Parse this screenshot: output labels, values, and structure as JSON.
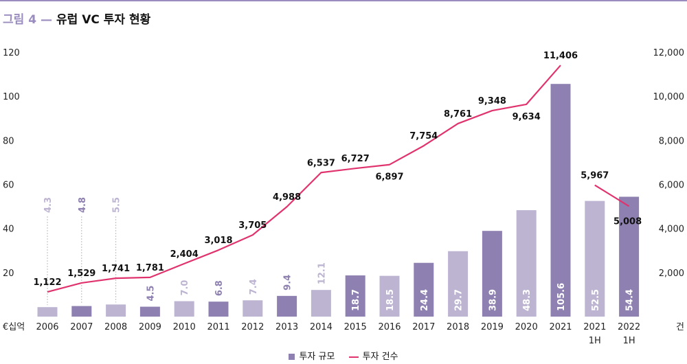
{
  "title": {
    "figure_label": "그림 4",
    "text": "유럽 VC 투자 현황"
  },
  "chart_data": {
    "type": "bar",
    "categories": [
      "2006",
      "2007",
      "2008",
      "2009",
      "2010",
      "2011",
      "2012",
      "2013",
      "2014",
      "2015",
      "2016",
      "2017",
      "2018",
      "2019",
      "2020",
      "2021",
      "2021 1H",
      "2022 1H"
    ],
    "left_axis": {
      "unit": "€십억",
      "ticks": [
        "20",
        "40",
        "60",
        "80",
        "100",
        "120"
      ],
      "ylim": [
        0,
        120
      ]
    },
    "right_axis": {
      "unit": "건",
      "ticks": [
        "2,000",
        "4,000",
        "6,000",
        "8,000",
        "10,000",
        "12,000"
      ],
      "ylim": [
        0,
        12000
      ]
    },
    "series": [
      {
        "name": "투자 규모",
        "type": "bar",
        "axis": "left",
        "values": [
          4.3,
          4.8,
          5.5,
          4.5,
          7.0,
          6.8,
          7.4,
          9.4,
          12.1,
          18.7,
          18.5,
          24.4,
          29.7,
          38.9,
          48.3,
          105.6,
          52.5,
          54.4
        ],
        "labels": [
          "4.3",
          "4.8",
          "5.5",
          "4.5",
          "7.0",
          "6.8",
          "7.4",
          "9.4",
          "12.1",
          "18.7",
          "18.5",
          "24.4",
          "29.7",
          "38.9",
          "48.3",
          "105.6",
          "52.5",
          "54.4"
        ],
        "bar_colors": [
          "#bdb4d2",
          "#8e80b0",
          "#bdb4d2",
          "#8e80b0",
          "#bdb4d2",
          "#8e80b0",
          "#bdb4d2",
          "#8e80b0",
          "#bdb4d2",
          "#8e80b0",
          "#bdb4d2",
          "#8e80b0",
          "#bdb4d2",
          "#8e80b0",
          "#bdb4d2",
          "#8e80b0",
          "#bdb4d2",
          "#8e80b0"
        ]
      },
      {
        "name": "투자 건수",
        "type": "line",
        "axis": "right",
        "values": [
          1122,
          1529,
          1741,
          1781,
          2404,
          3018,
          3705,
          4988,
          6537,
          6727,
          6897,
          7754,
          8761,
          9348,
          9634,
          11406,
          5967,
          5008
        ],
        "labels": [
          "1,122",
          "1,529",
          "1,741",
          "1,781",
          "2,404",
          "3,018",
          "3,705",
          "4,988",
          "6,537",
          "6,727",
          "6,897",
          "7,754",
          "8,761",
          "9,348",
          "9,634",
          "11,406",
          "5,967",
          "5,008"
        ],
        "color": "#e0336e"
      }
    ],
    "grid": false,
    "legend_position": "bottom-center"
  },
  "legend": {
    "bar_label": "투자 규모",
    "line_label": "투자 건수"
  }
}
